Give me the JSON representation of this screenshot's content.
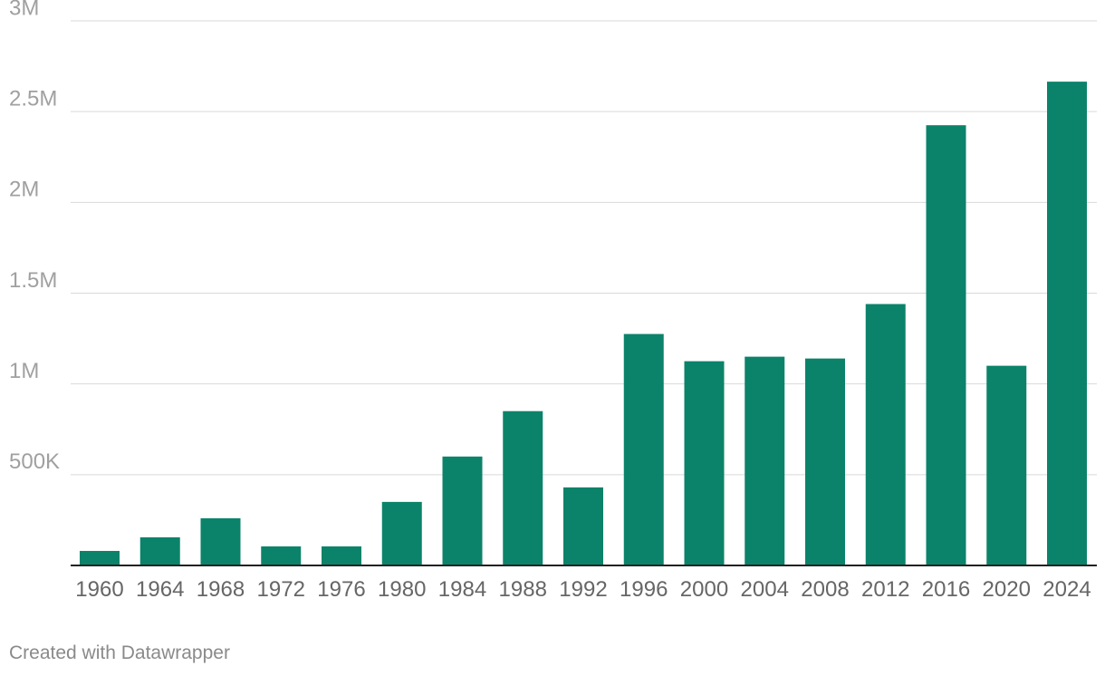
{
  "chart_data": {
    "type": "bar",
    "categories": [
      "1960",
      "1964",
      "1968",
      "1972",
      "1976",
      "1980",
      "1984",
      "1988",
      "1992",
      "1996",
      "2000",
      "2004",
      "2008",
      "2012",
      "2016",
      "2020",
      "2024"
    ],
    "values": [
      80000,
      155000,
      260000,
      105000,
      105000,
      350000,
      600000,
      850000,
      430000,
      1275000,
      1125000,
      1150000,
      1140000,
      1440000,
      2425000,
      1100000,
      2665000
    ],
    "ylim": [
      0,
      3000000
    ],
    "yticks": [
      {
        "value": 3000000,
        "label": "3M"
      },
      {
        "value": 2500000,
        "label": "2.5M"
      },
      {
        "value": 2000000,
        "label": "2M"
      },
      {
        "value": 1500000,
        "label": "1.5M"
      },
      {
        "value": 1000000,
        "label": "1M"
      },
      {
        "value": 500000,
        "label": "500K"
      }
    ],
    "grid": true,
    "bar_color": "#0b836a"
  },
  "footer": {
    "credit": "Created with Datawrapper"
  }
}
